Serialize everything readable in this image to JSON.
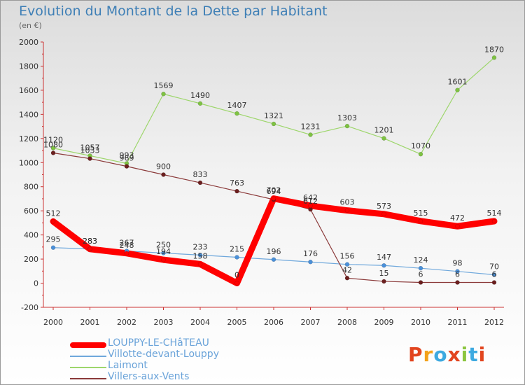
{
  "title": "Evolution du Montant de la Dette par Habitant",
  "subtitle": "(en €)",
  "logo": {
    "text": "Proxiti",
    "colors": [
      "#e2451f",
      "#f3a21b",
      "#3da9e0",
      "#e2451f",
      "#8bc53f",
      "#3da9e0",
      "#e2451f"
    ]
  },
  "chart_data": {
    "type": "line",
    "x": [
      "2000",
      "2001",
      "2002",
      "2003",
      "2004",
      "2005",
      "2006",
      "2007",
      "2008",
      "2009",
      "2010",
      "2011",
      "2012"
    ],
    "ylim": [
      -200,
      2000
    ],
    "yticks": [
      -200,
      0,
      200,
      400,
      600,
      800,
      1000,
      1200,
      1400,
      1600,
      1800,
      2000
    ],
    "grid": false,
    "legend_position": "bottom",
    "series": [
      {
        "name": "LOUPPY-LE-CHâTEAU",
        "color": "#ff0000",
        "marker": "#ff0000",
        "width": 9,
        "values": [
          512,
          283,
          248,
          194,
          158,
          0,
          702,
          642,
          603,
          573,
          515,
          472,
          514
        ]
      },
      {
        "name": "Villotte-devant-Louppy",
        "color": "#6fa8dc",
        "marker": "#4a90d9",
        "width": 1.2,
        "values": [
          295,
          283,
          267,
          250,
          233,
          215,
          196,
          176,
          156,
          147,
          124,
          98,
          70
        ]
      },
      {
        "name": "Laimont",
        "color": "#9dd66b",
        "marker": "#7ec242",
        "width": 1.2,
        "values": [
          1120,
          1057,
          993,
          1569,
          1490,
          1407,
          1321,
          1231,
          1303,
          1201,
          1070,
          1601,
          1870
        ]
      },
      {
        "name": "Villers-aux-Vents",
        "color": "#8b3a3a",
        "marker": "#6b1f1f",
        "width": 1.2,
        "values": [
          1080,
          1033,
          969,
          900,
          833,
          763,
          694,
          612,
          42,
          15,
          6,
          6,
          6
        ]
      }
    ],
    "data_labels": [
      {
        "series": 0,
        "texts": [
          "512",
          "283",
          "248",
          "194",
          "158",
          "0",
          "702",
          "642",
          "603",
          "573",
          "515",
          "472",
          "514"
        ]
      },
      {
        "series": 1,
        "texts": [
          "295",
          "283",
          "267",
          "250",
          "233",
          "215",
          "196",
          "176",
          "156",
          "147",
          "124",
          "98",
          "70"
        ]
      },
      {
        "series": 2,
        "texts": [
          "1120",
          "1057",
          "993",
          "1569",
          "1490",
          "1407",
          "1321",
          "1231",
          "1303",
          "1201",
          "1070",
          "1601",
          "1870"
        ]
      },
      {
        "series": 3,
        "texts": [
          "1080",
          "1033",
          "969",
          "900",
          "833",
          "763",
          "694",
          "612",
          "42",
          "15",
          "6",
          "6",
          "6"
        ]
      }
    ]
  }
}
